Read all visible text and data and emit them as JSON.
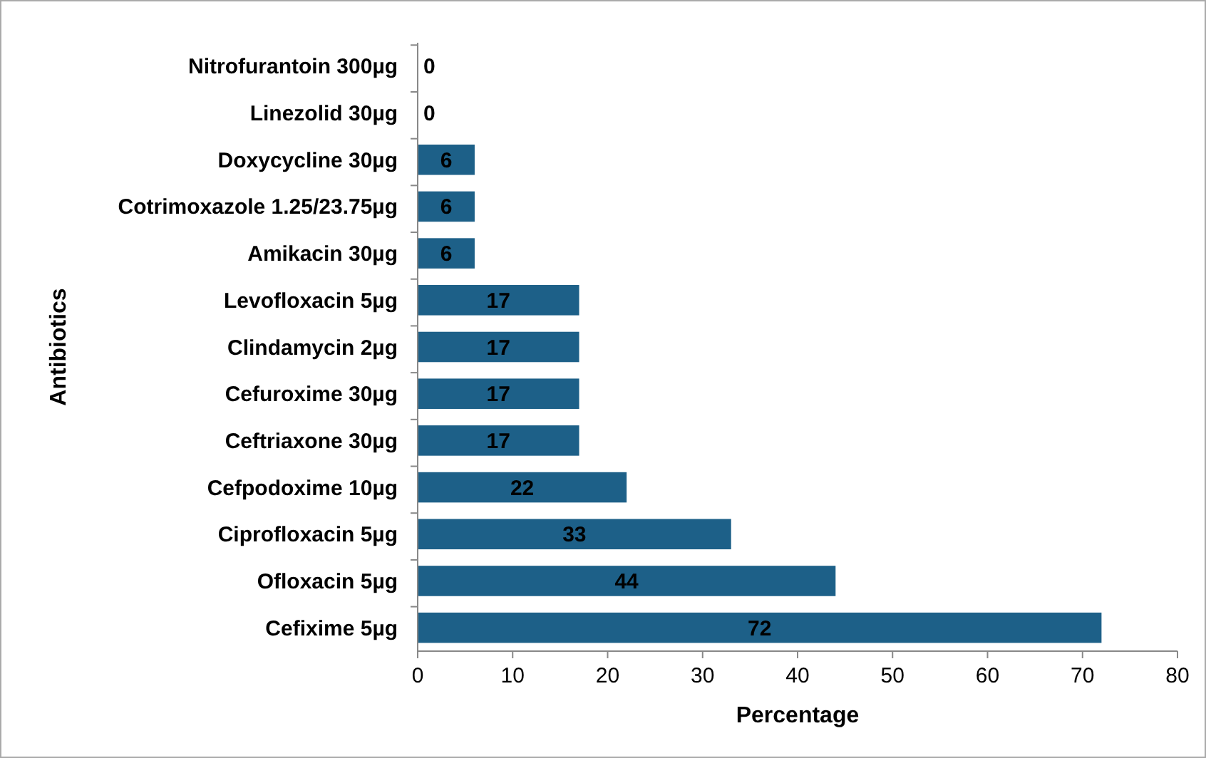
{
  "chart_data": {
    "type": "bar",
    "orientation": "horizontal",
    "xlabel": "Percentage",
    "ylabel": "Antibiotics",
    "categories": [
      "Nitrofurantoin 300µg",
      "Linezolid 30µg",
      "Doxycycline 30µg",
      "Cotrimoxazole 1.25/23.75µg",
      "Amikacin 30µg",
      "Levofloxacin 5µg",
      "Clindamycin 2µg",
      "Cefuroxime 30µg",
      "Ceftriaxone 30µg",
      "Cefpodoxime 10µg",
      "Ciprofloxacin 5µg",
      "Ofloxacin 5µg",
      "Cefixime 5µg"
    ],
    "values": [
      0,
      0,
      6,
      6,
      6,
      17,
      17,
      17,
      17,
      22,
      33,
      44,
      72
    ],
    "color": "#1d6088",
    "xlim": [
      0,
      80
    ],
    "xticks": [
      0,
      10,
      20,
      30,
      40,
      50,
      60,
      70,
      80
    ],
    "data_labels": true,
    "grid": false
  }
}
